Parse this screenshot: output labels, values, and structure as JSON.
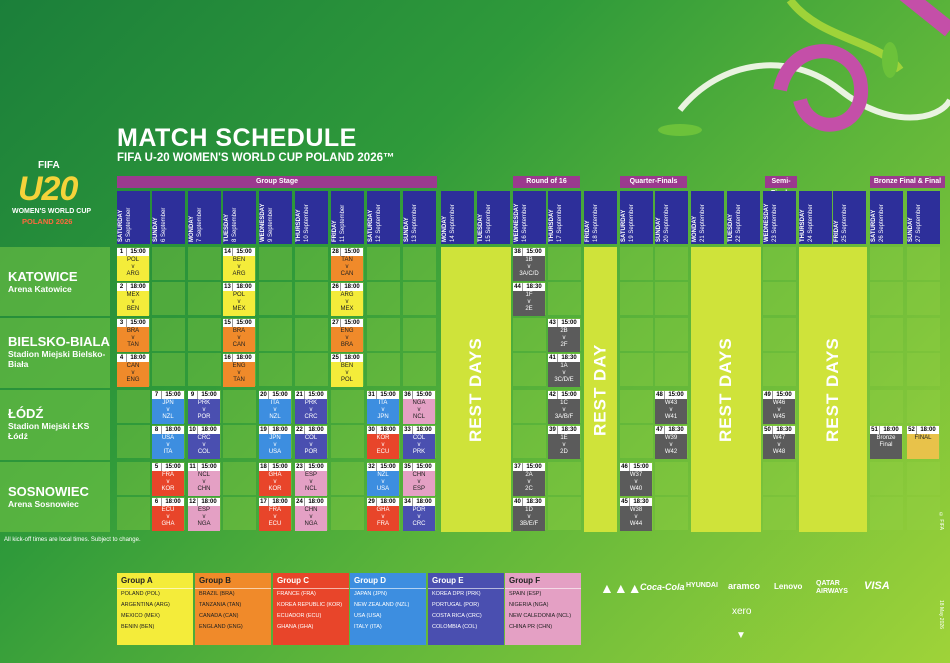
{
  "header": {
    "title": "MATCH SCHEDULE",
    "subtitle": "FIFA U-20 WOMEN'S WORLD CUP POLAND 2026™"
  },
  "logo": {
    "fifa": "FIFA",
    "big": "U20",
    "line1": "WOMEN'S WORLD CUP",
    "line2": "POLAND 2026"
  },
  "stages": {
    "group": "Group Stage",
    "r16": "Round of 16",
    "qf": "Quarter-Finals",
    "sf": "Semi-Finals",
    "final": "Bronze Final & Final"
  },
  "days": [
    {
      "d": "SATURDAY",
      "t": "5 September"
    },
    {
      "d": "SUNDAY",
      "t": "6 September"
    },
    {
      "d": "MONDAY",
      "t": "7 September"
    },
    {
      "d": "TUESDAY",
      "t": "8 September"
    },
    {
      "d": "WEDNESDAY",
      "t": "9 September"
    },
    {
      "d": "THURSDAY",
      "t": "10 September"
    },
    {
      "d": "FRIDAY",
      "t": "11 September"
    },
    {
      "d": "SATURDAY",
      "t": "12 September"
    },
    {
      "d": "SUNDAY",
      "t": "13 September"
    },
    {
      "d": "MONDAY",
      "t": "14 September"
    },
    {
      "d": "TUESDAY",
      "t": "15 September"
    },
    {
      "d": "WEDNESDAY",
      "t": "16 September"
    },
    {
      "d": "THURSDAY",
      "t": "17 September"
    },
    {
      "d": "FRIDAY",
      "t": "18 September"
    },
    {
      "d": "SATURDAY",
      "t": "19 September"
    },
    {
      "d": "SUNDAY",
      "t": "20 September"
    },
    {
      "d": "MONDAY",
      "t": "21 September"
    },
    {
      "d": "TUESDAY",
      "t": "22 September"
    },
    {
      "d": "WEDNESDAY",
      "t": "23 September"
    },
    {
      "d": "THURSDAY",
      "t": "24 September"
    },
    {
      "d": "FRIDAY",
      "t": "25 September"
    },
    {
      "d": "SATURDAY",
      "t": "26 September"
    },
    {
      "d": "SUNDAY",
      "t": "27 September"
    }
  ],
  "venues": [
    {
      "name": "KATOWICE",
      "stadium": "Arena Katowice"
    },
    {
      "name": "BIELSKO-BIALA",
      "stadium": "Stadion Miejski Bielsko-Biała"
    },
    {
      "name": "ŁÓDŹ",
      "stadium": "Stadion Miejski ŁKS Łódź"
    },
    {
      "name": "SOSNOWIEC",
      "stadium": "Arena Sosnowiec"
    }
  ],
  "rest": {
    "days": "REST DAYS",
    "day": "REST DAY"
  },
  "matches": [
    {
      "n": "1",
      "t": "15:00",
      "a": "POL",
      "v": "v",
      "b": "ARG",
      "c": "yel"
    },
    {
      "n": "2",
      "t": "18:00",
      "a": "MEX",
      "v": "v",
      "b": "BEN",
      "c": "yel"
    },
    {
      "n": "14",
      "t": "15:00",
      "a": "BEN",
      "v": "v",
      "b": "ARG",
      "c": "yel"
    },
    {
      "n": "13",
      "t": "18:00",
      "a": "POL",
      "v": "v",
      "b": "MEX",
      "c": "yel"
    },
    {
      "n": "28",
      "t": "15:00",
      "a": "TAN",
      "v": "v",
      "b": "CAN",
      "c": "ora"
    },
    {
      "n": "26",
      "t": "18:00",
      "a": "ARG",
      "v": "v",
      "b": "MEX",
      "c": "yel"
    },
    {
      "n": "38",
      "t": "15:00",
      "a": "1B",
      "v": "v",
      "b": "3A/C/D",
      "c": "gry"
    },
    {
      "n": "44",
      "t": "18:30",
      "a": "1F",
      "v": "v",
      "b": "2E",
      "c": "gry"
    },
    {
      "n": "3",
      "t": "15:00",
      "a": "BRA",
      "v": "v",
      "b": "TAN",
      "c": "ora"
    },
    {
      "n": "4",
      "t": "18:00",
      "a": "CAN",
      "v": "v",
      "b": "ENG",
      "c": "ora"
    },
    {
      "n": "15",
      "t": "15:00",
      "a": "BRA",
      "v": "v",
      "b": "CAN",
      "c": "ora"
    },
    {
      "n": "16",
      "t": "18:00",
      "a": "ENG",
      "v": "v",
      "b": "TAN",
      "c": "ora"
    },
    {
      "n": "27",
      "t": "15:00",
      "a": "ENG",
      "v": "v",
      "b": "BRA",
      "c": "ora"
    },
    {
      "n": "25",
      "t": "18:00",
      "a": "BEN",
      "v": "v",
      "b": "POL",
      "c": "yel"
    },
    {
      "n": "43",
      "t": "15:00",
      "a": "2B",
      "v": "v",
      "b": "2F",
      "c": "gry"
    },
    {
      "n": "41",
      "t": "18:30",
      "a": "1A",
      "v": "v",
      "b": "3C/D/E",
      "c": "gry"
    },
    {
      "n": "7",
      "t": "15:00",
      "a": "JPN",
      "v": "v",
      "b": "NZL",
      "c": "blu"
    },
    {
      "n": "9",
      "t": "15:00",
      "a": "PRK",
      "v": "v",
      "b": "POR",
      "c": "ind"
    },
    {
      "n": "20",
      "t": "15:00",
      "a": "ITA",
      "v": "v",
      "b": "NZL",
      "c": "blu"
    },
    {
      "n": "21",
      "t": "15:00",
      "a": "PRK",
      "v": "v",
      "b": "CRC",
      "c": "ind"
    },
    {
      "n": "31",
      "t": "15:00",
      "a": "ITA",
      "v": "v",
      "b": "JPN",
      "c": "blu"
    },
    {
      "n": "36",
      "t": "15:00",
      "a": "NGA",
      "v": "v",
      "b": "NCL",
      "c": "pnk"
    },
    {
      "n": "42",
      "t": "15:00",
      "a": "1C",
      "v": "v",
      "b": "3A/B/F",
      "c": "gry"
    },
    {
      "n": "48",
      "t": "15:00",
      "a": "W43",
      "v": "v",
      "b": "W41",
      "c": "gry"
    },
    {
      "n": "49",
      "t": "15:00",
      "a": "W46",
      "v": "v",
      "b": "W45",
      "c": "gry"
    },
    {
      "n": "8",
      "t": "18:00",
      "a": "USA",
      "v": "v",
      "b": "ITA",
      "c": "blu"
    },
    {
      "n": "10",
      "t": "18:00",
      "a": "CRC",
      "v": "v",
      "b": "COL",
      "c": "ind"
    },
    {
      "n": "19",
      "t": "18:00",
      "a": "JPN",
      "v": "v",
      "b": "USA",
      "c": "blu"
    },
    {
      "n": "22",
      "t": "18:00",
      "a": "COL",
      "v": "v",
      "b": "POR",
      "c": "ind"
    },
    {
      "n": "30",
      "t": "18:00",
      "a": "KOR",
      "v": "v",
      "b": "ECU",
      "c": "red"
    },
    {
      "n": "33",
      "t": "18:00",
      "a": "COL",
      "v": "v",
      "b": "PRK",
      "c": "ind"
    },
    {
      "n": "39",
      "t": "18:30",
      "a": "1E",
      "v": "v",
      "b": "2D",
      "c": "gry"
    },
    {
      "n": "47",
      "t": "18:30",
      "a": "W39",
      "v": "v",
      "b": "W42",
      "c": "gry"
    },
    {
      "n": "50",
      "t": "18:30",
      "a": "W47",
      "v": "v",
      "b": "W48",
      "c": "gry"
    },
    {
      "n": "51",
      "t": "18:00",
      "a": "Bronze",
      "v": "",
      "b": "Final",
      "c": "gry"
    },
    {
      "n": "52",
      "t": "18:00",
      "a": "FINAL",
      "v": "",
      "b": "",
      "c": "gold"
    },
    {
      "n": "5",
      "t": "15:00",
      "a": "FRA",
      "v": "v",
      "b": "KOR",
      "c": "red"
    },
    {
      "n": "11",
      "t": "15:00",
      "a": "NCL",
      "v": "v",
      "b": "CHN",
      "c": "pnk"
    },
    {
      "n": "18",
      "t": "15:00",
      "a": "GHA",
      "v": "v",
      "b": "KOR",
      "c": "red"
    },
    {
      "n": "23",
      "t": "15:00",
      "a": "ESP",
      "v": "v",
      "b": "NCL",
      "c": "pnk"
    },
    {
      "n": "32",
      "t": "15:00",
      "a": "NZL",
      "v": "v",
      "b": "USA",
      "c": "blu"
    },
    {
      "n": "35",
      "t": "15:00",
      "a": "CHN",
      "v": "v",
      "b": "ESP",
      "c": "pnk"
    },
    {
      "n": "37",
      "t": "15:00",
      "a": "2A",
      "v": "v",
      "b": "2C",
      "c": "gry"
    },
    {
      "n": "46",
      "t": "15:00",
      "a": "W37",
      "v": "v",
      "b": "W40",
      "c": "gry"
    },
    {
      "n": "6",
      "t": "18:00",
      "a": "ECU",
      "v": "v",
      "b": "GHA",
      "c": "red"
    },
    {
      "n": "12",
      "t": "18:00",
      "a": "ESP",
      "v": "v",
      "b": "NGA",
      "c": "pnk"
    },
    {
      "n": "17",
      "t": "18:00",
      "a": "FRA",
      "v": "v",
      "b": "ECU",
      "c": "red"
    },
    {
      "n": "24",
      "t": "18:00",
      "a": "CHN",
      "v": "v",
      "b": "NGA",
      "c": "pnk"
    },
    {
      "n": "29",
      "t": "18:00",
      "a": "GHA",
      "v": "v",
      "b": "FRA",
      "c": "red"
    },
    {
      "n": "34",
      "t": "18:00",
      "a": "POR",
      "v": "v",
      "b": "CRC",
      "c": "ind"
    },
    {
      "n": "40",
      "t": "18:30",
      "a": "1D",
      "v": "v",
      "b": "3B/E/F",
      "c": "gry"
    },
    {
      "n": "45",
      "t": "18:30",
      "a": "W38",
      "v": "v",
      "b": "W44",
      "c": "gry"
    }
  ],
  "note": "All kick-off times are local times. Subject to change.",
  "groups": [
    {
      "name": "Group A",
      "color": "#f4ec3a",
      "text": "#222",
      "teams": [
        "POLAND (POL)",
        "ARGENTINA (ARG)",
        "MEXICO (MEX)",
        "BENIN (BEN)"
      ]
    },
    {
      "name": "Group B",
      "color": "#f08a2a",
      "text": "#222",
      "teams": [
        "BRAZIL (BRA)",
        "TANZANIA (TAN)",
        "CANADA (CAN)",
        "ENGLAND (ENG)"
      ]
    },
    {
      "name": "Group C",
      "color": "#e8452a",
      "text": "#fff",
      "teams": [
        "FRANCE (FRA)",
        "KOREA REPUBLIC (KOR)",
        "ECUADOR (ECU)",
        "GHANA (GHA)"
      ]
    },
    {
      "name": "Group D",
      "color": "#3d8ee0",
      "text": "#fff",
      "teams": [
        "JAPAN (JPN)",
        "NEW ZEALAND (NZL)",
        "USA (USA)",
        "ITALY (ITA)"
      ]
    },
    {
      "name": "Group E",
      "color": "#4a4fb0",
      "text": "#fff",
      "teams": [
        "KOREA DPR (PRK)",
        "PORTUGAL (POR)",
        "COSTA RICA (CRC)",
        "COLOMBIA (COL)"
      ]
    },
    {
      "name": "Group F",
      "color": "#e4a0c4",
      "text": "#222",
      "teams": [
        "SPAIN (ESP)",
        "NIGERIA (NGA)",
        "NEW CALEDONIA (NCL)",
        "CHINA PR (CHN)"
      ]
    }
  ],
  "sponsors": [
    "Coca-Cola",
    "HYUNDAI",
    "aramco",
    "Lenovo",
    "QATAR AIRWAYS",
    "VISA",
    "xero"
  ],
  "footer": {
    "copyright": "© FIFA",
    "date": "18 May 2026"
  }
}
